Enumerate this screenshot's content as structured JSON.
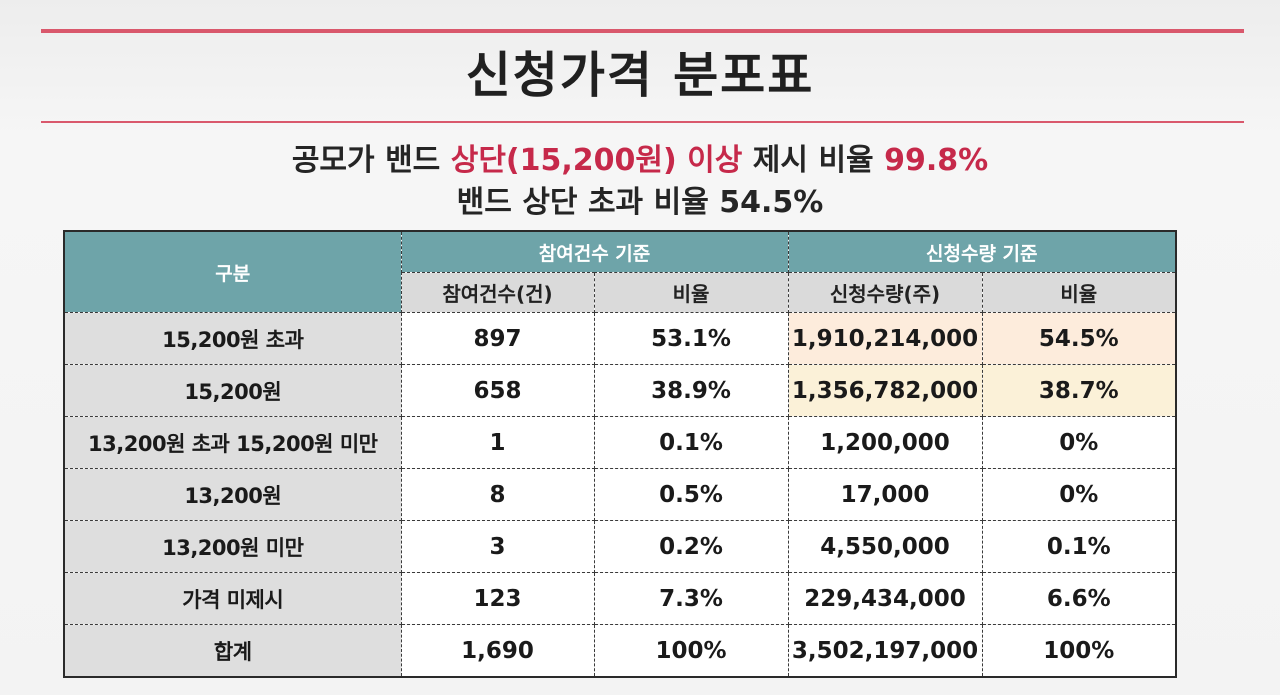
{
  "title": "신청가격 분포표",
  "subtitle": {
    "line1_part1": "공모가 밴드 ",
    "line1_highlight": "상단(15,200원) 이상",
    "line1_part2": " 제시 비율 ",
    "line1_value": "99.8%",
    "line2": "밴드 상단 초과 비율 54.5%"
  },
  "colors": {
    "accent_red": "#c6294a",
    "rule": "#d9586c",
    "header_teal": "#6ea4a9",
    "header_gray": "#dadada",
    "highlight_orange": "#fdecdc",
    "highlight_yellow": "#fbf1d8"
  },
  "table": {
    "gubun_label": "구분",
    "group1_label": "참여건수 기준",
    "group2_label": "신청수량 기준",
    "col_headers": [
      "참여건수(건)",
      "비율",
      "신청수량(주)",
      "비율"
    ],
    "rows": [
      {
        "label": "15,200원 초과",
        "count": "897",
        "count_ratio": "53.1%",
        "qty": "1,910,214,000",
        "qty_ratio": "54.5%"
      },
      {
        "label": "15,200원",
        "count": "658",
        "count_ratio": "38.9%",
        "qty": "1,356,782,000",
        "qty_ratio": "38.7%"
      },
      {
        "label": "13,200원 초과 15,200원 미만",
        "count": "1",
        "count_ratio": "0.1%",
        "qty": "1,200,000",
        "qty_ratio": "0%"
      },
      {
        "label": "13,200원",
        "count": "8",
        "count_ratio": "0.5%",
        "qty": "17,000",
        "qty_ratio": "0%"
      },
      {
        "label": "13,200원 미만",
        "count": "3",
        "count_ratio": "0.2%",
        "qty": "4,550,000",
        "qty_ratio": "0.1%"
      },
      {
        "label": "가격 미제시",
        "count": "123",
        "count_ratio": "7.3%",
        "qty": "229,434,000",
        "qty_ratio": "6.6%"
      },
      {
        "label": "합계",
        "count": "1,690",
        "count_ratio": "100%",
        "qty": "3,502,197,000",
        "qty_ratio": "100%"
      }
    ]
  }
}
